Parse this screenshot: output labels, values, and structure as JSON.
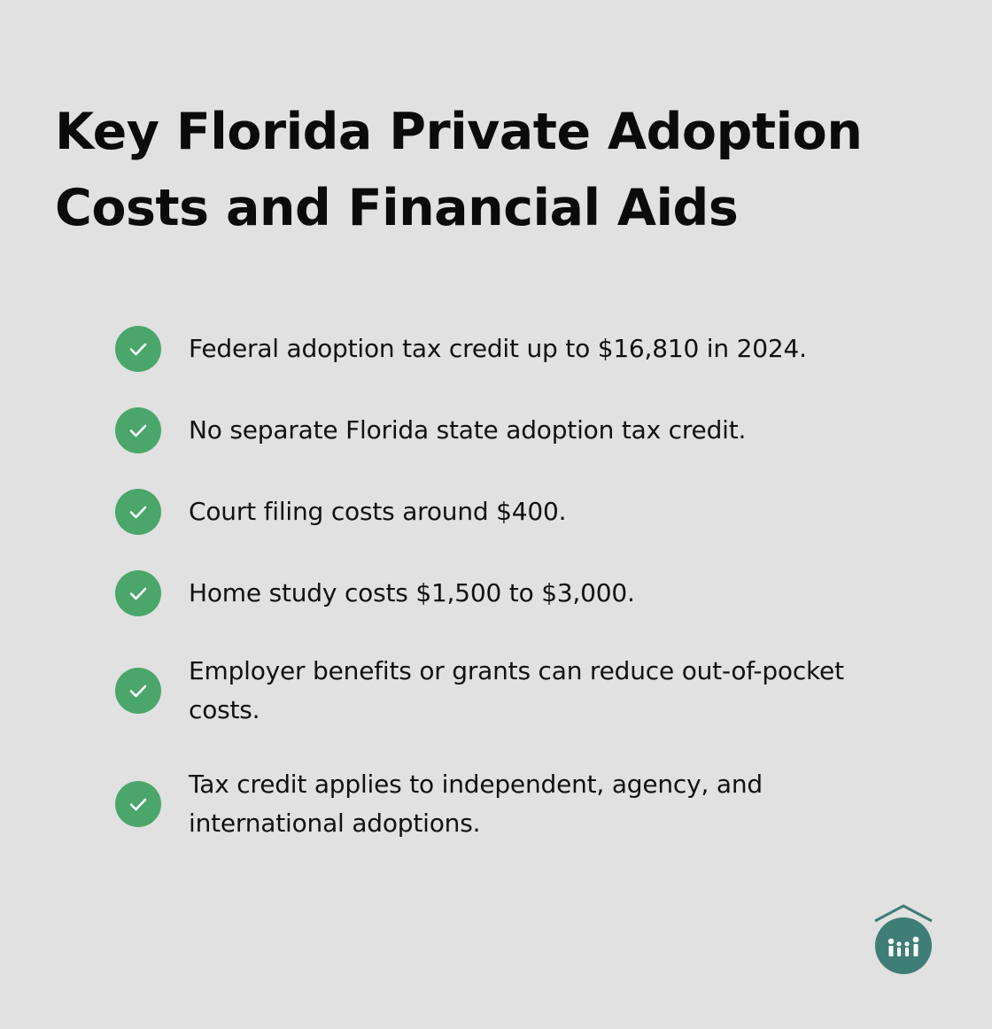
{
  "title": "Key Florida Private Adoption Costs and Financial Aids",
  "items": [
    {
      "text": "Federal adoption tax credit up to $16,810 in 2024."
    },
    {
      "text": "No separate Florida state adoption tax credit."
    },
    {
      "text": "Court filing costs around $400."
    },
    {
      "text": "Home study costs $1,500 to $3,000."
    },
    {
      "text": "Employer benefits or grants can reduce out-of-pocket costs."
    },
    {
      "text": "Tax credit applies to independent, agency, and international adoptions."
    }
  ],
  "colors": {
    "background": "#e0e1e0",
    "check": "#4aa66a",
    "logo": "#3f7d77"
  },
  "icons": {
    "check": "check-icon",
    "logo": "family-home-logo-icon"
  }
}
